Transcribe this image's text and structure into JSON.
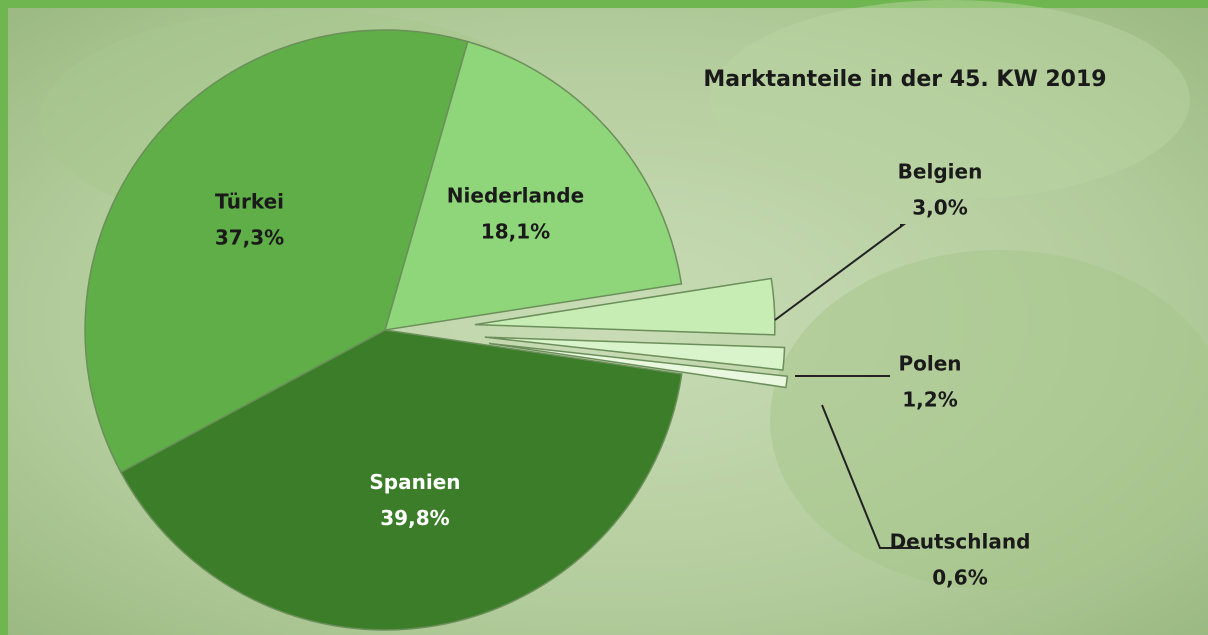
{
  "chart_data": {
    "type": "pie",
    "title": "Marktanteile in der 45. KW 2019",
    "categories": [
      "Niederlande",
      "Belgien",
      "Polen",
      "Deutschland",
      "Spanien",
      "Türkei"
    ],
    "values": [
      18.1,
      3.0,
      1.2,
      0.6,
      39.8,
      37.3
    ],
    "value_labels": [
      "18,1%",
      "3,0%",
      "1,2%",
      "0,6%",
      "39,8%",
      "37,3%"
    ],
    "colors": [
      "#8fd57a",
      "#c8edb4",
      "#d9f3ca",
      "#e8f7de",
      "#3b7d28",
      "#5fae47"
    ]
  }
}
